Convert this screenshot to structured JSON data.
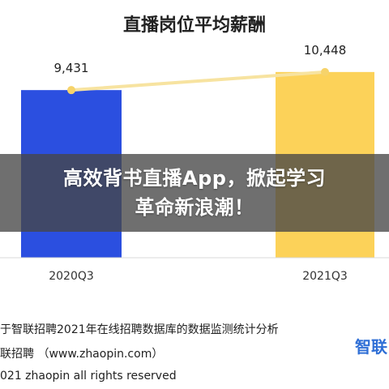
{
  "chart_data": {
    "type": "bar",
    "title": "直播岗位平均薪酬",
    "categories": [
      "2020Q3",
      "2021Q3"
    ],
    "values": [
      9431,
      10448
    ],
    "value_labels": [
      "9,431",
      "10,448"
    ],
    "ylim": [
      0,
      14500
    ],
    "trend_line": true,
    "grid": false,
    "colors": {
      "bar_2020Q3": "#2b4fe0",
      "bar_2021Q3": "#fcd259",
      "trend_line": "#f7e3a0",
      "trend_point": "#f6d36a"
    }
  },
  "banner": {
    "line1": "高效背书直播App，掀起学习",
    "line2": "革命新浪潮！"
  },
  "source": {
    "line1": "于智联招聘2021年在线招聘数据库的数据监测统计分析",
    "line2": "联招聘 （www.zhaopin.com）",
    "line3": "021 zhaopin all rights reserved"
  },
  "logo_text": "智联"
}
